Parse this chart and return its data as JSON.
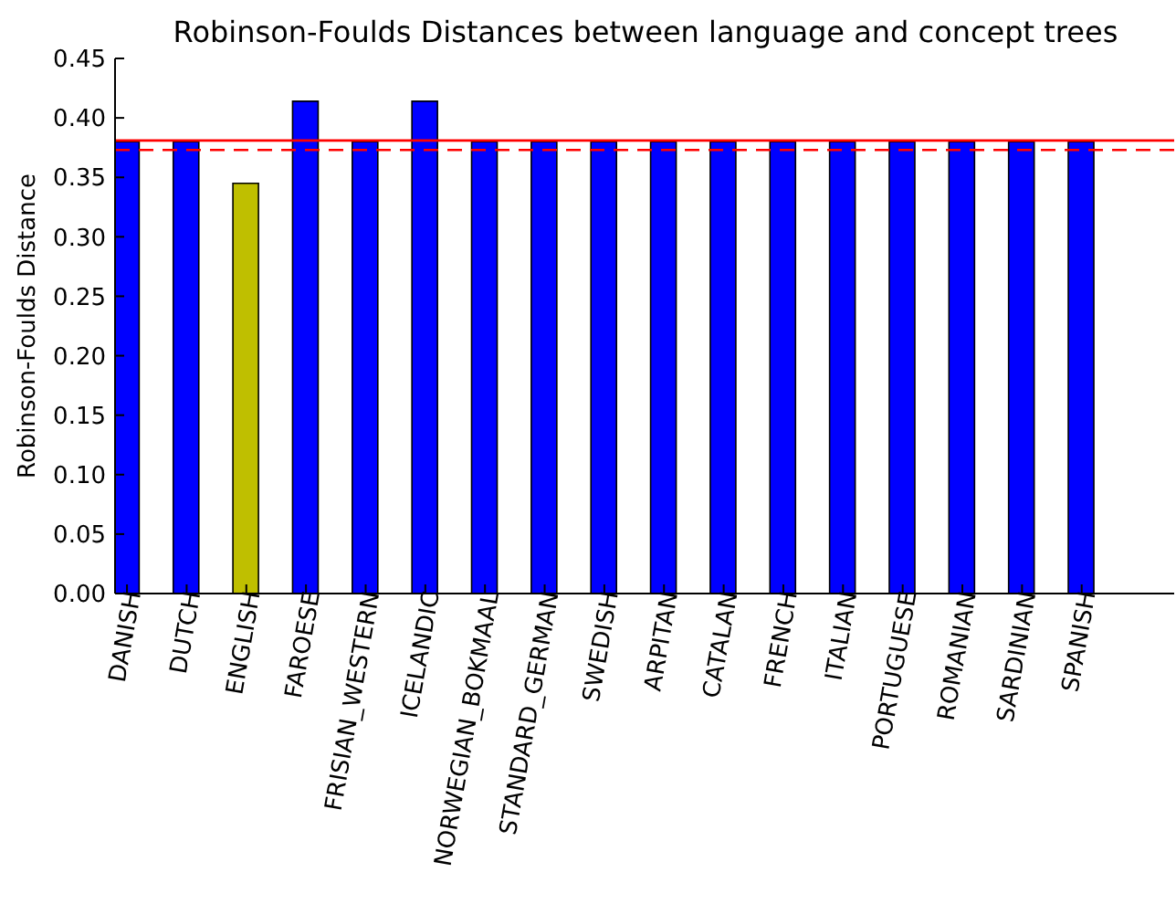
{
  "chart_data": {
    "type": "bar",
    "title": "Robinson-Foulds Distances between language and concept trees",
    "ylabel": "Robinson-Foulds Distance",
    "categories": [
      "DANISH",
      "DUTCH",
      "ENGLISH",
      "FAROESE",
      "FRISIAN_WESTERN",
      "ICELANDIC",
      "NORWEGIAN_BOKMAAL",
      "STANDARD_GERMAN",
      "SWEDISH",
      "ARPITAN",
      "CATALAN",
      "FRENCH",
      "ITALIAN",
      "PORTUGUESE",
      "ROMANIAN",
      "SARDINIAN",
      "SPANISH"
    ],
    "values": [
      0.38,
      0.38,
      0.345,
      0.414,
      0.38,
      0.414,
      0.38,
      0.38,
      0.38,
      0.38,
      0.38,
      0.38,
      0.38,
      0.38,
      0.38,
      0.38,
      0.38
    ],
    "colors": [
      "#0000ff",
      "#0000ff",
      "#bfbf00",
      "#0000ff",
      "#0000ff",
      "#0000ff",
      "#0000ff",
      "#0000ff",
      "#0000ff",
      "#0000ff",
      "#0000ff",
      "#0000ff",
      "#0000ff",
      "#0000ff",
      "#0000ff",
      "#0000ff",
      "#0000ff"
    ],
    "ylim": [
      0,
      0.45
    ],
    "yticks": [
      {
        "value": 0,
        "label": "0.00"
      },
      {
        "value": 0.05,
        "label": "0.05"
      },
      {
        "value": 0.1,
        "label": "0.10"
      },
      {
        "value": 0.15,
        "label": "0.15"
      },
      {
        "value": 0.2,
        "label": "0.20"
      },
      {
        "value": 0.25,
        "label": "0.25"
      },
      {
        "value": 0.3,
        "label": "0.30"
      },
      {
        "value": 0.35,
        "label": "0.35"
      },
      {
        "value": 0.4,
        "label": "0.40"
      },
      {
        "value": 0.45,
        "label": "0.45"
      }
    ],
    "ref_lines": [
      {
        "axis": "y",
        "value": 0.381,
        "color": "#ff0000",
        "line_style": "solid"
      },
      {
        "axis": "y",
        "value": 0.373,
        "color": "#ff0000",
        "line_style": "dashed"
      }
    ],
    "grid": false,
    "legend": false
  }
}
